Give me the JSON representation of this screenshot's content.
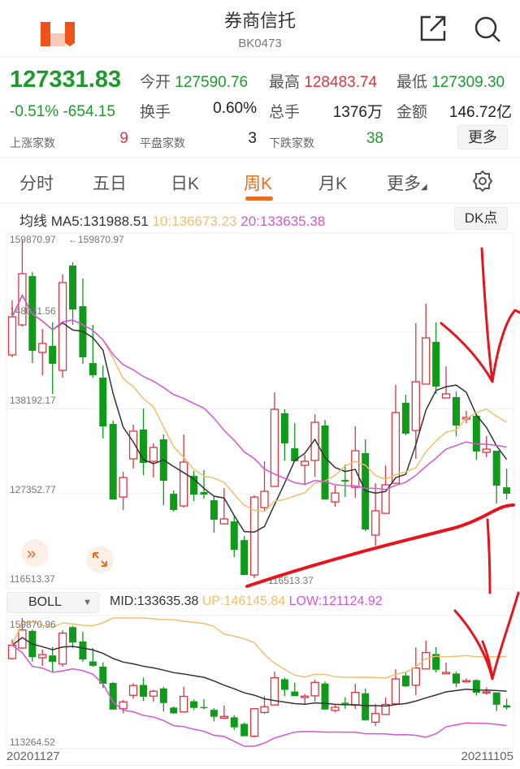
{
  "header": {
    "title": "券商信托",
    "code": "BK0473",
    "logo_color": "#f0521b"
  },
  "quote": {
    "price": "127331.83",
    "change_pct": "-0.51%",
    "change": "-654.15",
    "open_label": "今开",
    "open": "127590.76",
    "high_label": "最高",
    "high": "128483.74",
    "low_label": "最低",
    "low": "127309.30",
    "turnover_label": "换手",
    "turnover": "0.60%",
    "volume_label": "总手",
    "volume": "1376万",
    "amount_label": "金额",
    "amount": "146.72亿",
    "up_label": "上涨家数",
    "up": "9",
    "flat_label": "平盘家数",
    "flat": "3",
    "down_label": "下跌家数",
    "down": "38",
    "more": "更多"
  },
  "tabs": [
    {
      "label": "分时"
    },
    {
      "label": "五日"
    },
    {
      "label": "日K"
    },
    {
      "label": "周K",
      "active": true
    },
    {
      "label": "月K"
    },
    {
      "label": "更多"
    }
  ],
  "ma_legend": {
    "prefix": "均线",
    "ma5": "MA5:131988.51",
    "ma10": "10:136673.23",
    "ma20": "20:133635.38",
    "dk": "DK点"
  },
  "colors": {
    "up": "#e0343f",
    "down": "#0f9a1a",
    "ma5": "#333333",
    "ma10": "#f0bf6a",
    "ma20": "#d455d6",
    "accent": "#ee6a1f",
    "annotation": "#e8141c"
  },
  "main_axis": {
    "labels": [
      "159870.97",
      "148031.56",
      "138192.17",
      "127352.77",
      "116513.37"
    ],
    "max_marker": "←159870.97",
    "min_marker": "←116513.37"
  },
  "indicator": {
    "name": "BOLL",
    "mid": "MID:133635.38",
    "up": "UP:146145.84",
    "low": "LOW:121124.92",
    "axis_top": "159870.96",
    "axis_bottom": "113264.52"
  },
  "dates": {
    "start": "20201127",
    "end": "20211105"
  },
  "chart_data": {
    "type": "candlestick",
    "period": "weekly",
    "ylim": [
      116513.37,
      159870.97
    ],
    "ohlc": [
      [
        145100,
        152070,
        144790,
        149990
      ],
      [
        148950,
        159871,
        148740,
        155500
      ],
      [
        155190,
        155710,
        144060,
        145620
      ],
      [
        145420,
        148430,
        142500,
        146560
      ],
      [
        146250,
        149260,
        140110,
        143960
      ],
      [
        143130,
        155400,
        142190,
        154360
      ],
      [
        156540,
        156960,
        148950,
        150930
      ],
      [
        151340,
        154880,
        143960,
        144790
      ],
      [
        144060,
        148950,
        142190,
        142500
      ],
      [
        142190,
        143750,
        134390,
        135950
      ],
      [
        136260,
        136680,
        126590,
        126590
      ],
      [
        126900,
        130130,
        125240,
        129400
      ],
      [
        131790,
        136160,
        130540,
        135330
      ],
      [
        135540,
        138240,
        129710,
        131270
      ],
      [
        131480,
        133770,
        129400,
        133250
      ],
      [
        134290,
        134910,
        125860,
        128980
      ],
      [
        127320,
        127740,
        125030,
        125240
      ],
      [
        125760,
        134910,
        125550,
        131380
      ],
      [
        129610,
        130230,
        126380,
        127220
      ],
      [
        127530,
        130340,
        126700,
        127220
      ],
      [
        126490,
        127110,
        122330,
        123990
      ],
      [
        123470,
        128050,
        123370,
        124100
      ],
      [
        123780,
        124510,
        119210,
        120140
      ],
      [
        121390,
        121910,
        116920,
        116920
      ],
      [
        116920,
        127110,
        116513,
        126900
      ],
      [
        125550,
        131480,
        125030,
        127630
      ],
      [
        128260,
        140320,
        128260,
        138140
      ],
      [
        137620,
        138140,
        131580,
        133770
      ],
      [
        133140,
        136370,
        131480,
        131480
      ],
      [
        130960,
        132310,
        128460,
        131480
      ],
      [
        131580,
        137510,
        129500,
        136470
      ],
      [
        136060,
        136780,
        126590,
        126590
      ],
      [
        126280,
        128360,
        125660,
        127420
      ],
      [
        129090,
        131060,
        126900,
        128880
      ],
      [
        128150,
        135950,
        126800,
        132830
      ],
      [
        132520,
        134290,
        122540,
        122740
      ],
      [
        122020,
        128670,
        120660,
        125140
      ],
      [
        124820,
        130960,
        124820,
        128460
      ],
      [
        128670,
        141260,
        128670,
        137720
      ],
      [
        138970,
        140010,
        134810,
        135020
      ],
      [
        135430,
        149160,
        131790,
        141670
      ],
      [
        141360,
        151660,
        141360,
        147290
      ],
      [
        146770,
        149260,
        140110,
        141050
      ],
      [
        139590,
        143650,
        139590,
        140110
      ],
      [
        139700,
        140420,
        134700,
        136060
      ],
      [
        136890,
        137930,
        136370,
        137100
      ],
      [
        137300,
        137620,
        131690,
        132730
      ],
      [
        132620,
        134700,
        132020,
        133040
      ],
      [
        132830,
        132830,
        126070,
        128360
      ],
      [
        128150,
        130540,
        126590,
        127332
      ]
    ]
  }
}
